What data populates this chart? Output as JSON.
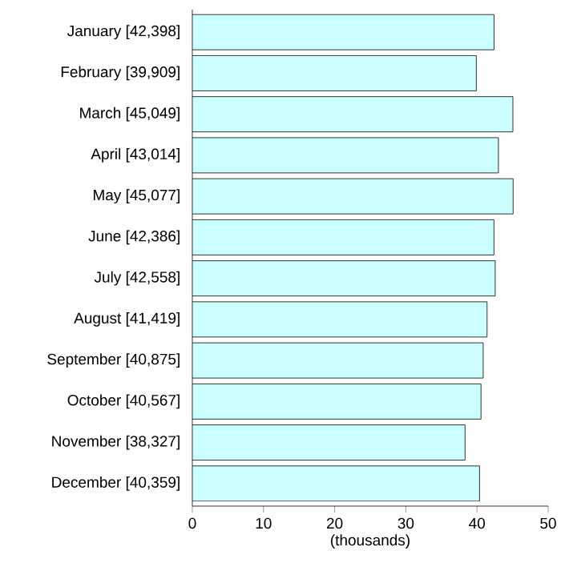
{
  "chart_data": {
    "type": "bar",
    "orientation": "horizontal",
    "xlabel": "(thousands)",
    "categories": [
      "January [42,398]",
      "February [39,909]",
      "March [45,049]",
      "April [43,014]",
      "May [45,077]",
      "June [42,386]",
      "July [42,558]",
      "August [41,419]",
      "September [40,875]",
      "October [40,567]",
      "November [38,327]",
      "December [40,359]"
    ],
    "values": [
      42.398,
      39.909,
      45.049,
      43.014,
      45.077,
      42.386,
      42.558,
      41.419,
      40.875,
      40.567,
      38.327,
      40.359
    ],
    "color": "#ccffff",
    "xlim": [
      0,
      50
    ],
    "xticks": [
      0,
      10,
      20,
      30,
      40,
      50
    ]
  }
}
